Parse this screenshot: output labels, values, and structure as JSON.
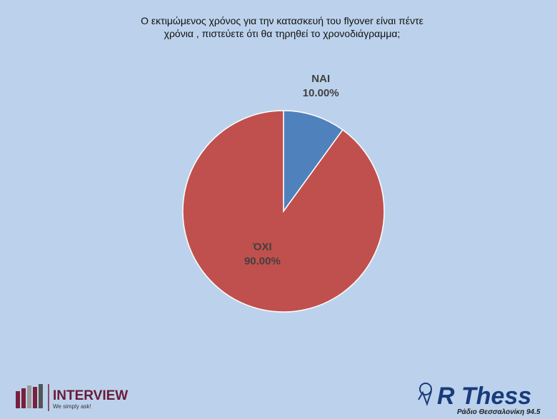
{
  "chart_data": {
    "type": "pie",
    "title": "Ο εκτιμώμενος χρόνος για την κατασκευή του flyover είναι πέντε χρόνια , πιστεύετε ότι θα τηρηθεί το χρονοδιάγραμμα;",
    "categories": [
      "ΝΑΙ",
      "ΌΧΙ"
    ],
    "values": [
      10,
      90
    ],
    "value_labels": [
      "10.00%",
      "90.00%"
    ],
    "colors": [
      "#4f81bd",
      "#c0504d"
    ]
  },
  "branding": {
    "left_name": "INTERVIEW",
    "left_slogan": "We simply ask!",
    "right_name": "R Thess",
    "right_subtitle": "Ράδιο Θεσσαλονίκη 94.5"
  }
}
